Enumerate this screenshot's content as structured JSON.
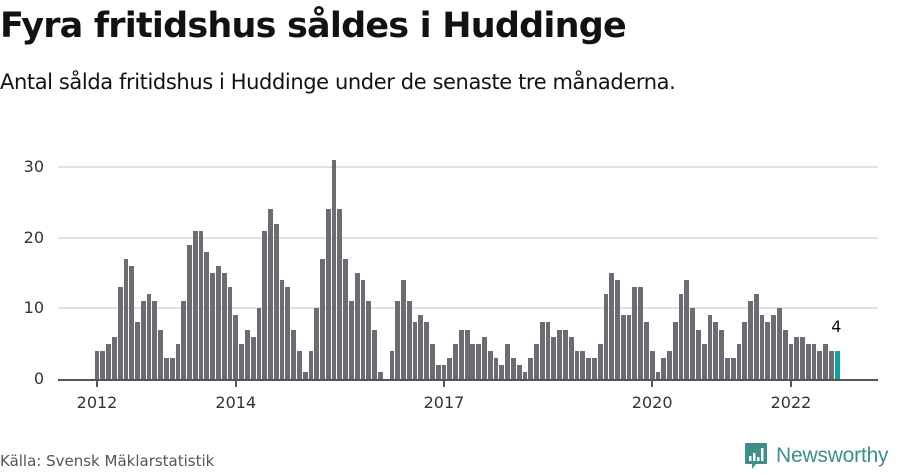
{
  "header": {
    "title": "Fyra fritidshus såldes i Huddinge",
    "subtitle": "Antal sålda fritidshus i Huddinge under de senaste tre månaderna."
  },
  "footer": {
    "source": "Källa: Svensk Mäklarstatistik",
    "brand": "Newsworthy",
    "brand_color": "#3d8f88"
  },
  "colors": {
    "bar": "#6d6c72",
    "highlight": "#14a099",
    "grid": "#e1e1e1",
    "axis": "#555559"
  },
  "chart_data": {
    "type": "bar",
    "title": "Fyra fritidshus såldes i Huddinge",
    "subtitle": "Antal sålda fritidshus i Huddinge under de senaste tre månaderna.",
    "xlabel": "",
    "ylabel": "",
    "ylim": [
      0,
      30
    ],
    "yticks": [
      0,
      10,
      20,
      30
    ],
    "grid": true,
    "legend": null,
    "x_start": "2012-01",
    "x_end": "2022-09",
    "frequency": "monthly",
    "xtick_labels": [
      {
        "label": "2012",
        "index": 0
      },
      {
        "label": "2014",
        "index": 24
      },
      {
        "label": "2017",
        "index": 60
      },
      {
        "label": "2020",
        "index": 96
      },
      {
        "label": "2022",
        "index": 120
      }
    ],
    "values": [
      4,
      4,
      5,
      6,
      13,
      17,
      16,
      8,
      11,
      12,
      11,
      7,
      3,
      3,
      5,
      11,
      19,
      21,
      21,
      18,
      15,
      16,
      15,
      13,
      9,
      5,
      7,
      6,
      10,
      21,
      24,
      22,
      14,
      13,
      7,
      4,
      1,
      4,
      10,
      17,
      24,
      31,
      24,
      17,
      11,
      15,
      14,
      11,
      7,
      1,
      0,
      4,
      11,
      14,
      11,
      8,
      9,
      8,
      5,
      2,
      2,
      3,
      5,
      7,
      7,
      5,
      5,
      6,
      4,
      3,
      2,
      5,
      3,
      2,
      1,
      3,
      5,
      8,
      8,
      6,
      7,
      7,
      6,
      4,
      4,
      3,
      3,
      5,
      12,
      15,
      14,
      9,
      9,
      13,
      13,
      8,
      4,
      1,
      3,
      4,
      8,
      12,
      14,
      10,
      7,
      5,
      9,
      8,
      7,
      3,
      3,
      5,
      8,
      11,
      12,
      9,
      8,
      9,
      10,
      7,
      5,
      6,
      6,
      5,
      5,
      4,
      5,
      4,
      4
    ],
    "highlight_index": 128,
    "annotations": [
      {
        "index": 128,
        "text": "4"
      }
    ]
  }
}
